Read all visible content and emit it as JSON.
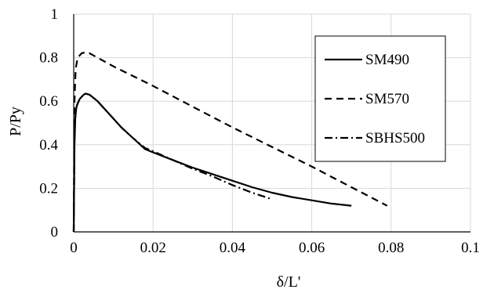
{
  "chart_data": {
    "type": "line",
    "title": "",
    "xlabel": "δ/L'",
    "ylabel": "P/Py",
    "xlim": [
      0,
      0.1
    ],
    "ylim": [
      0,
      1
    ],
    "x_ticks": [
      0,
      0.02,
      0.04,
      0.06,
      0.08,
      0.1
    ],
    "x_tick_labels": [
      "0",
      "0.02",
      "0.04",
      "0.06",
      "0.08",
      "0.1"
    ],
    "y_ticks": [
      0,
      0.2,
      0.4,
      0.6,
      0.8,
      1
    ],
    "y_tick_labels": [
      "0",
      "0.2",
      "0.4",
      "0.6",
      "0.8",
      "1"
    ],
    "grid": true,
    "legend_position": "top-right",
    "series": [
      {
        "name": "SM490",
        "line_style": "solid",
        "x": [
          0,
          0.0002,
          0.0004,
          0.0006,
          0.0008,
          0.001,
          0.0015,
          0.002,
          0.0025,
          0.003,
          0.004,
          0.005,
          0.006,
          0.008,
          0.01,
          0.012,
          0.015,
          0.018,
          0.02,
          0.025,
          0.03,
          0.035,
          0.04,
          0.045,
          0.05,
          0.055,
          0.06,
          0.065,
          0.07
        ],
        "y": [
          0,
          0.4,
          0.52,
          0.56,
          0.58,
          0.59,
          0.61,
          0.62,
          0.63,
          0.635,
          0.63,
          0.615,
          0.6,
          0.56,
          0.52,
          0.48,
          0.43,
          0.38,
          0.365,
          0.33,
          0.295,
          0.265,
          0.235,
          0.205,
          0.18,
          0.16,
          0.145,
          0.13,
          0.12
        ]
      },
      {
        "name": "SM570",
        "line_style": "dashed",
        "x": [
          0,
          0.0002,
          0.0005,
          0.001,
          0.0015,
          0.002,
          0.003,
          0.004,
          0.005,
          0.01,
          0.02,
          0.03,
          0.04,
          0.05,
          0.06,
          0.07,
          0.079
        ],
        "y": [
          0,
          0.6,
          0.75,
          0.8,
          0.81,
          0.82,
          0.825,
          0.82,
          0.81,
          0.76,
          0.67,
          0.575,
          0.48,
          0.39,
          0.3,
          0.205,
          0.12
        ]
      },
      {
        "name": "SBHS500",
        "line_style": "dash-dot",
        "x": [
          0,
          0.0002,
          0.0004,
          0.0006,
          0.0008,
          0.001,
          0.0015,
          0.002,
          0.0025,
          0.003,
          0.004,
          0.005,
          0.006,
          0.008,
          0.01,
          0.012,
          0.015,
          0.018,
          0.02,
          0.025,
          0.03,
          0.035,
          0.04,
          0.045,
          0.05
        ],
        "y": [
          0,
          0.42,
          0.53,
          0.56,
          0.58,
          0.59,
          0.61,
          0.62,
          0.63,
          0.635,
          0.63,
          0.615,
          0.6,
          0.56,
          0.52,
          0.48,
          0.43,
          0.385,
          0.37,
          0.33,
          0.29,
          0.255,
          0.215,
          0.18,
          0.15
        ]
      }
    ]
  },
  "colors": {
    "line": "#000000",
    "grid": "#d9d9d9",
    "background": "#ffffff"
  }
}
